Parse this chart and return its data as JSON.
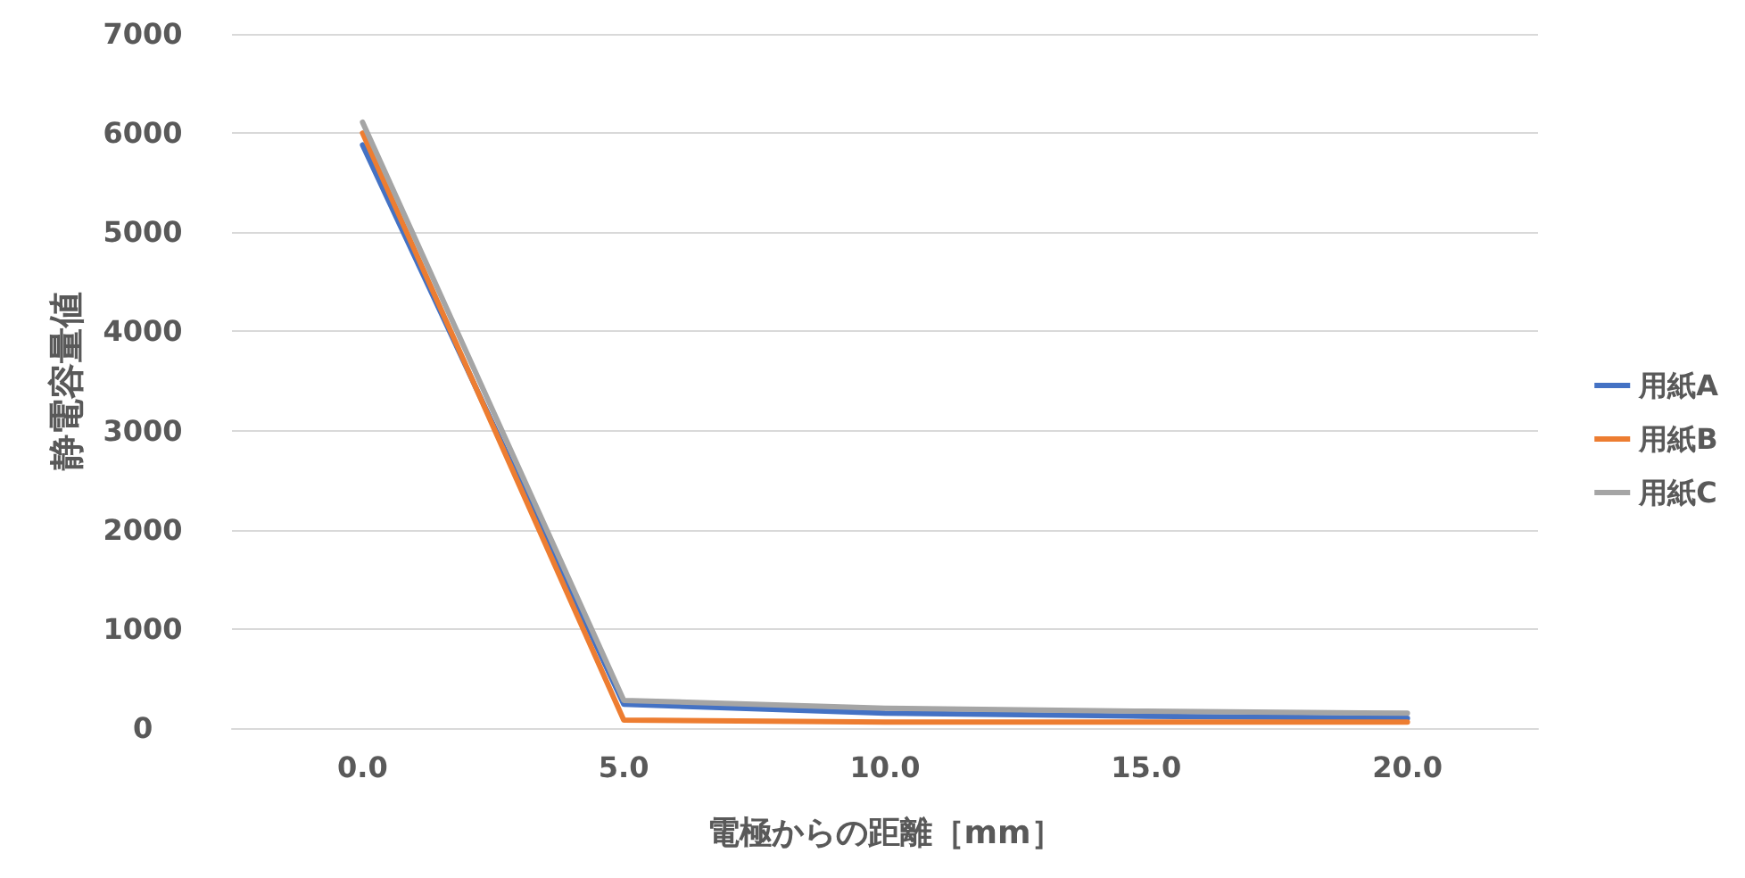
{
  "chart_data": {
    "type": "line",
    "xlabel": "電極からの距離［mm］",
    "ylabel": "静電容量値",
    "categories": [
      "0.0",
      "5.0",
      "10.0",
      "15.0",
      "20.0"
    ],
    "series": [
      {
        "name": "用紙A",
        "color": "#4472c4",
        "values": [
          5880,
          240,
          150,
          120,
          100
        ]
      },
      {
        "name": "用紙B",
        "color": "#ed7d31",
        "values": [
          6000,
          80,
          60,
          60,
          60
        ]
      },
      {
        "name": "用紙C",
        "color": "#a5a5a5",
        "values": [
          6110,
          280,
          200,
          170,
          150
        ]
      }
    ],
    "ylim": [
      0,
      7000
    ],
    "yticks": [
      0,
      1000,
      2000,
      3000,
      4000,
      5000,
      6000,
      7000
    ],
    "grid": "y",
    "legend": "right",
    "marker": "none",
    "line_style": "solid"
  }
}
